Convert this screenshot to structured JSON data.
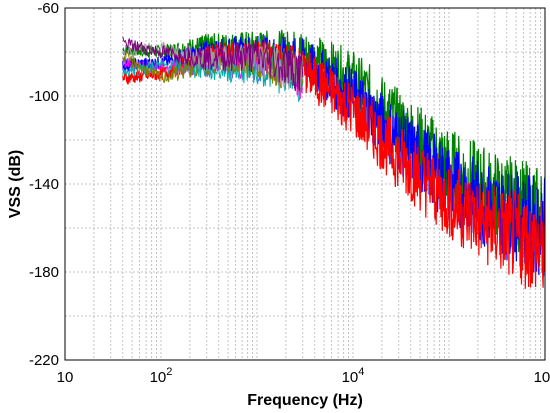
{
  "chart_data": {
    "type": "line",
    "title": "",
    "xlabel": "Frequency (Hz)",
    "ylabel": "VSS (dB)",
    "x_scale": "log",
    "xlim": [
      10,
      1000000
    ],
    "ylim": [
      -220,
      -60
    ],
    "x_ticks": [
      {
        "value": 10,
        "base": "10",
        "exp": ""
      },
      {
        "value": 100,
        "base": "10",
        "exp": "2"
      },
      {
        "value": 10000,
        "base": "10",
        "exp": "4"
      },
      {
        "value": 1000000,
        "base": "10",
        "exp": "6"
      }
    ],
    "y_ticks": [
      -60,
      -100,
      -140,
      -180,
      -220
    ],
    "grid": true,
    "legend": "none",
    "series": [
      {
        "color": "#008000",
        "values": [
          [
            40,
            -79
          ],
          [
            100,
            -80
          ],
          [
            300,
            -77
          ],
          [
            1000,
            -78
          ],
          [
            3000,
            -80
          ],
          [
            10000,
            -92
          ],
          [
            30000,
            -112
          ],
          [
            100000,
            -132
          ],
          [
            300000,
            -145
          ],
          [
            1000000,
            -155
          ]
        ]
      },
      {
        "color": "#0000ff",
        "values": [
          [
            40,
            -86
          ],
          [
            100,
            -85
          ],
          [
            300,
            -80
          ],
          [
            1000,
            -80
          ],
          [
            3000,
            -84
          ],
          [
            10000,
            -100
          ],
          [
            30000,
            -120
          ],
          [
            100000,
            -140
          ],
          [
            300000,
            -152
          ],
          [
            1000000,
            -160
          ]
        ]
      },
      {
        "color": "#ff0000",
        "values": [
          [
            40,
            -92
          ],
          [
            100,
            -90
          ],
          [
            300,
            -82
          ],
          [
            1000,
            -82
          ],
          [
            3000,
            -88
          ],
          [
            10000,
            -106
          ],
          [
            30000,
            -128
          ],
          [
            100000,
            -148
          ],
          [
            300000,
            -160
          ],
          [
            1000000,
            -170
          ]
        ]
      },
      {
        "color": "#ff00ff",
        "values": [
          [
            40,
            -85
          ],
          [
            100,
            -87
          ],
          [
            300,
            -86
          ],
          [
            1000,
            -85
          ],
          [
            3000,
            -92
          ]
        ]
      },
      {
        "color": "#00b0b0",
        "values": [
          [
            40,
            -89
          ],
          [
            100,
            -86
          ],
          [
            300,
            -88
          ],
          [
            1000,
            -87
          ],
          [
            3000,
            -93
          ]
        ]
      },
      {
        "color": "#808000",
        "values": [
          [
            40,
            -82
          ],
          [
            100,
            -92
          ],
          [
            300,
            -85
          ],
          [
            1000,
            -84
          ],
          [
            3000,
            -90
          ]
        ]
      },
      {
        "color": "#a0a0a0",
        "values": [
          [
            40,
            -80
          ],
          [
            100,
            -78
          ],
          [
            300,
            -84
          ],
          [
            1000,
            -83
          ],
          [
            3000,
            -90
          ]
        ]
      },
      {
        "color": "#800080",
        "values": [
          [
            40,
            -76
          ],
          [
            100,
            -80
          ],
          [
            300,
            -83
          ],
          [
            1000,
            -82
          ],
          [
            3000,
            -89
          ]
        ]
      }
    ]
  }
}
